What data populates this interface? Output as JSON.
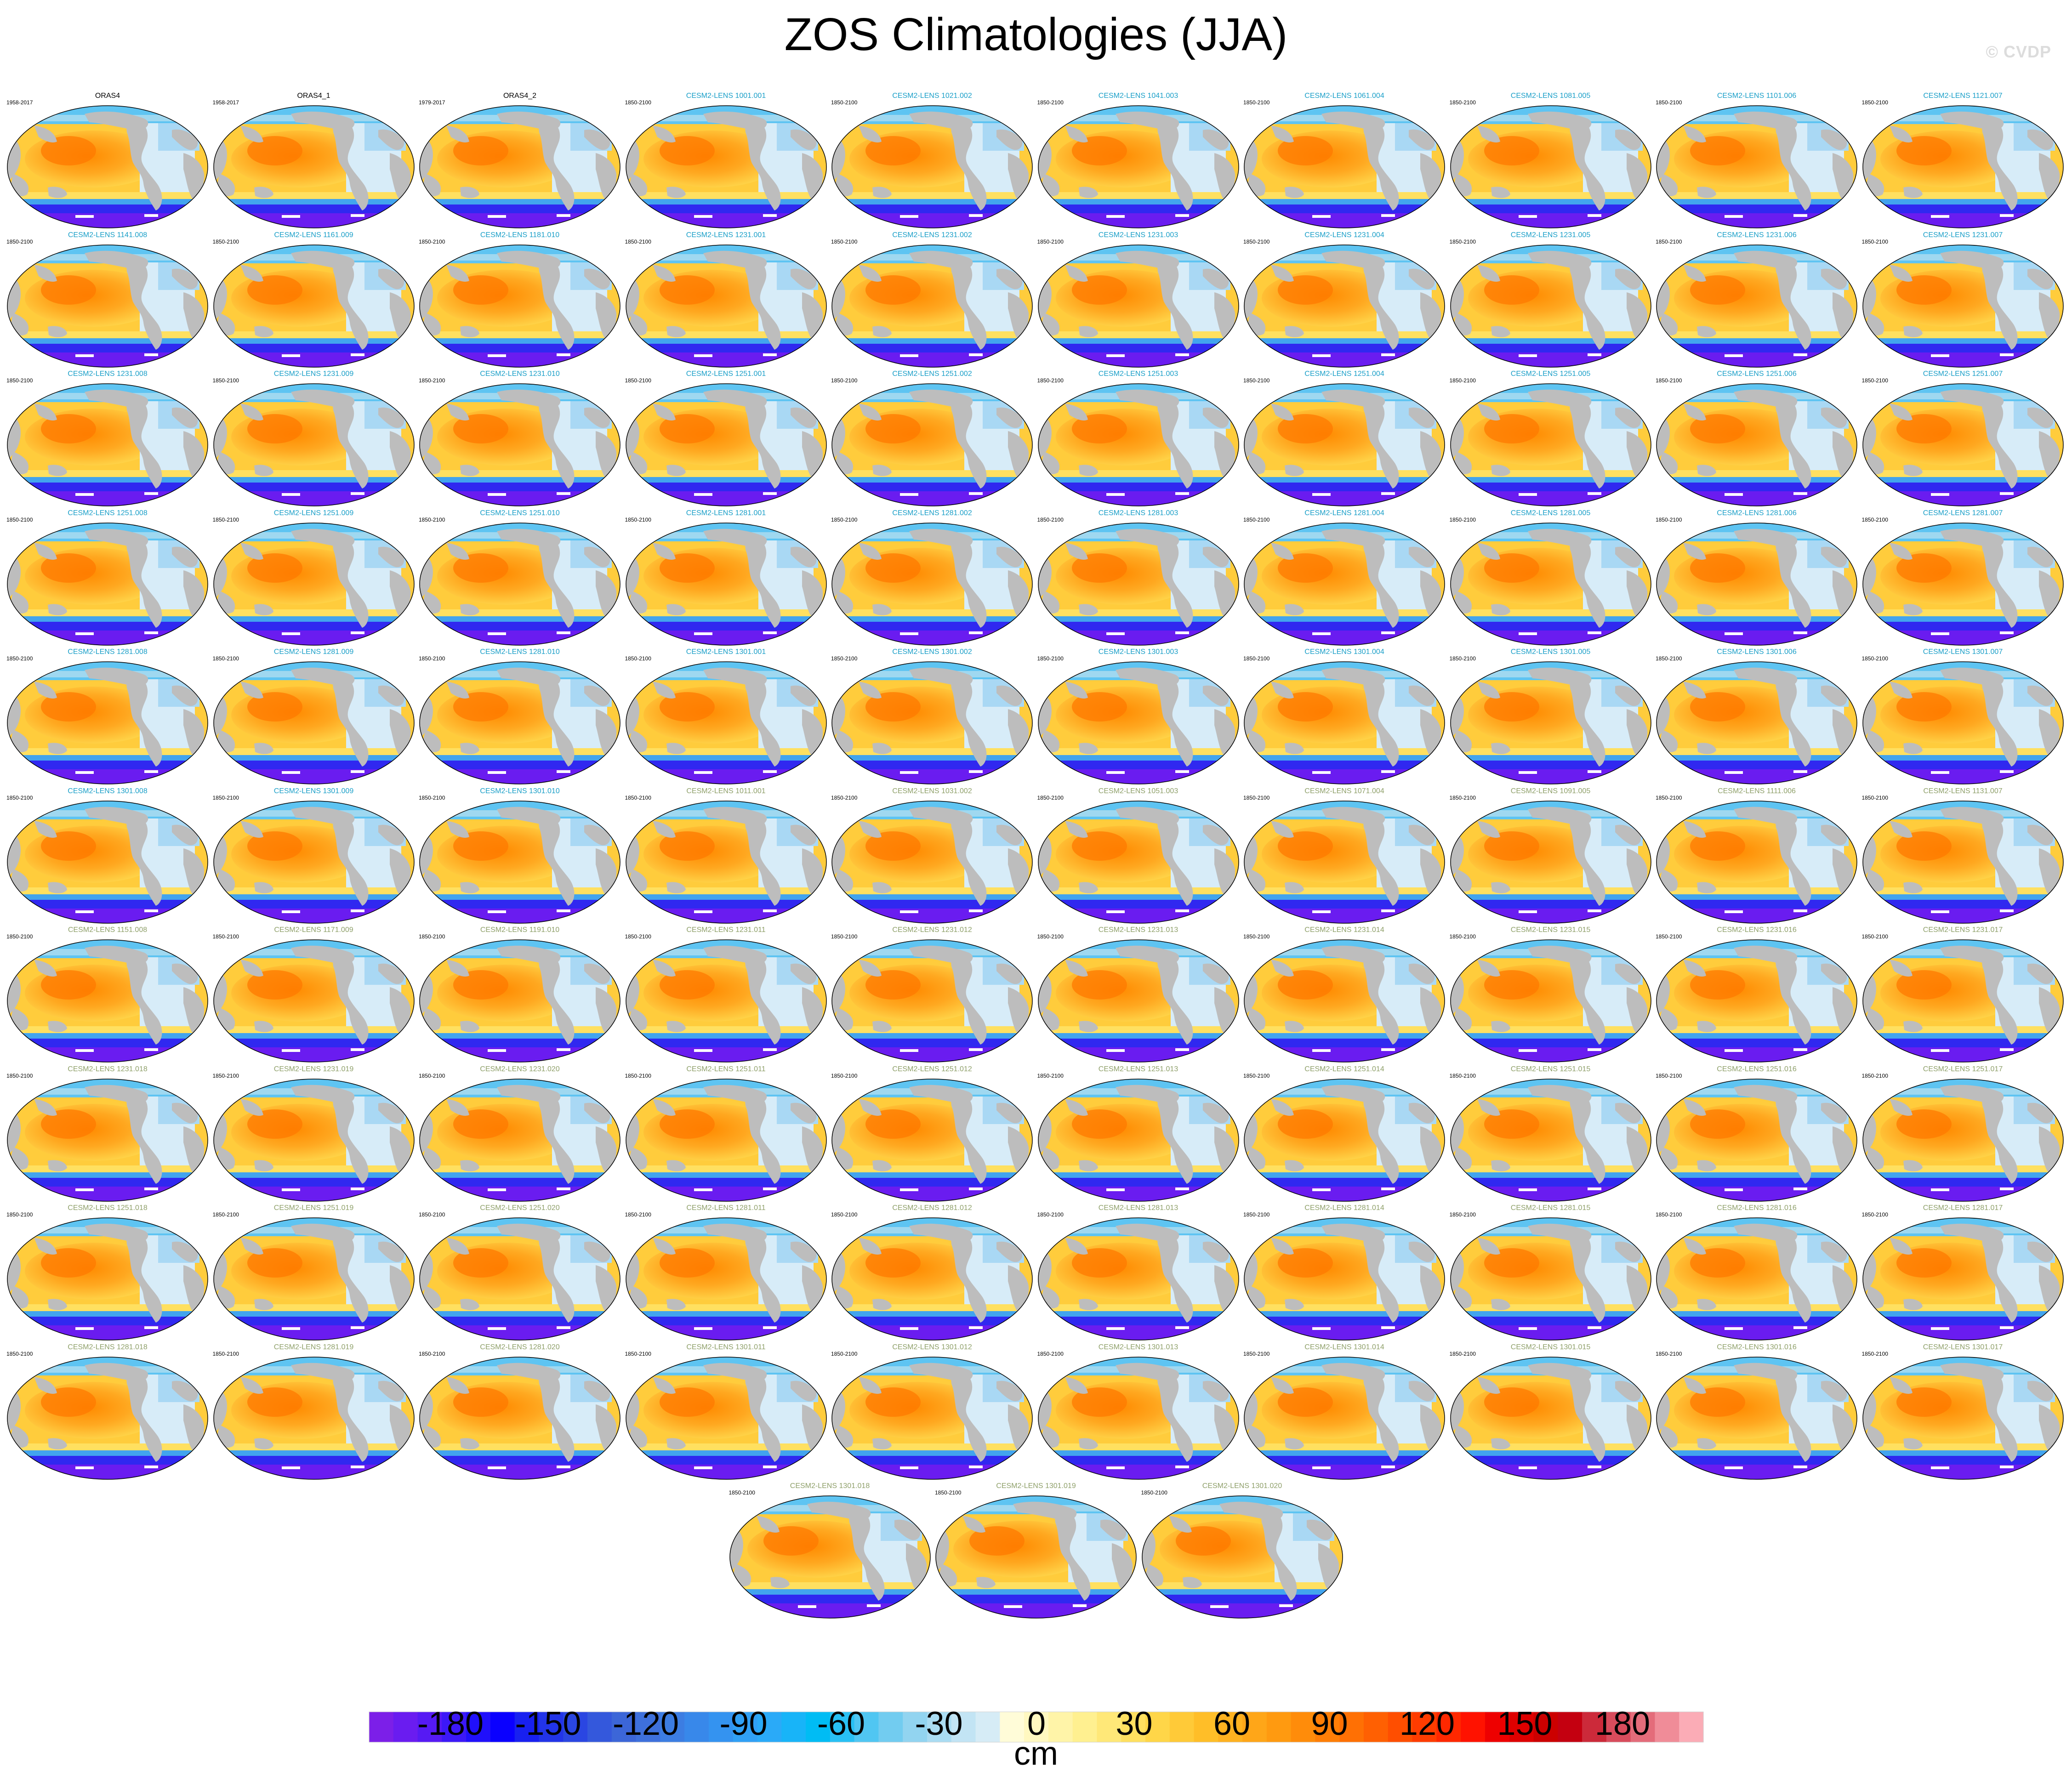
{
  "title": "ZOS Climatologies (JJA)",
  "watermark": "© CVDP",
  "colorbar": {
    "units": "cm",
    "ticks": [
      "-180",
      "-150",
      "-120",
      "-90",
      "-60",
      "-30",
      "0",
      "30",
      "60",
      "90",
      "120",
      "150",
      "180"
    ],
    "colors": [
      "#7c1fe8",
      "#6a1cf0",
      "#561af4",
      "#3c18f8",
      "#2010fb",
      "#0a00ff",
      "#1820f0",
      "#2234e8",
      "#2a46e2",
      "#3458dc",
      "#3c66d8",
      "#3e70dc",
      "#3c7de2",
      "#3888ea",
      "#3493f0",
      "#30a0f5",
      "#2aaaf8",
      "#18b4f8",
      "#00bcf4",
      "#28c0f4",
      "#50c6f2",
      "#72ccf0",
      "#92d4f0",
      "#aadcf2",
      "#c2e4f4",
      "#d6ecf6",
      "#fffcd8",
      "#fff8c0",
      "#fff4a8",
      "#fff090",
      "#ffe878",
      "#ffe060",
      "#ffd648",
      "#ffca38",
      "#ffbe28",
      "#ffb220",
      "#ffa618",
      "#ff9a10",
      "#ff8c0a",
      "#ff7e06",
      "#ff7004",
      "#ff6002",
      "#ff4e00",
      "#ff3c00",
      "#ff2800",
      "#ff1200",
      "#ee0000",
      "#de0000",
      "#cc0000",
      "#c40010",
      "#cc2a3a",
      "#d84c5c",
      "#e46c7a",
      "#f08c98",
      "#fbacb6"
    ]
  },
  "panels": [
    {
      "title": "ORAS4",
      "years": "1958-2017",
      "title_color": "#000000"
    },
    {
      "title": "ORAS4_1",
      "years": "1958-2017",
      "title_color": "#000000"
    },
    {
      "title": "ORAS4_2",
      "years": "1979-2017",
      "title_color": "#000000"
    },
    {
      "title": "CESM2-LENS 1001.001",
      "years": "1850-2100",
      "title_color": "#1a9fc8"
    },
    {
      "title": "CESM2-LENS 1021.002",
      "years": "1850-2100",
      "title_color": "#1a9fc8"
    },
    {
      "title": "CESM2-LENS 1041.003",
      "years": "1850-2100",
      "title_color": "#1a9fc8"
    },
    {
      "title": "CESM2-LENS 1061.004",
      "years": "1850-2100",
      "title_color": "#1a9fc8"
    },
    {
      "title": "CESM2-LENS 1081.005",
      "years": "1850-2100",
      "title_color": "#1a9fc8"
    },
    {
      "title": "CESM2-LENS 1101.006",
      "years": "1850-2100",
      "title_color": "#1a9fc8"
    },
    {
      "title": "CESM2-LENS 1121.007",
      "years": "1850-2100",
      "title_color": "#1a9fc8"
    },
    {
      "title": "CESM2-LENS 1141.008",
      "years": "1850-2100",
      "title_color": "#1a9fc8"
    },
    {
      "title": "CESM2-LENS 1161.009",
      "years": "1850-2100",
      "title_color": "#1a9fc8"
    },
    {
      "title": "CESM2-LENS 1181.010",
      "years": "1850-2100",
      "title_color": "#1a9fc8"
    },
    {
      "title": "CESM2-LENS 1231.001",
      "years": "1850-2100",
      "title_color": "#1a9fc8"
    },
    {
      "title": "CESM2-LENS 1231.002",
      "years": "1850-2100",
      "title_color": "#1a9fc8"
    },
    {
      "title": "CESM2-LENS 1231.003",
      "years": "1850-2100",
      "title_color": "#1a9fc8"
    },
    {
      "title": "CESM2-LENS 1231.004",
      "years": "1850-2100",
      "title_color": "#1a9fc8"
    },
    {
      "title": "CESM2-LENS 1231.005",
      "years": "1850-2100",
      "title_color": "#1a9fc8"
    },
    {
      "title": "CESM2-LENS 1231.006",
      "years": "1850-2100",
      "title_color": "#1a9fc8"
    },
    {
      "title": "CESM2-LENS 1231.007",
      "years": "1850-2100",
      "title_color": "#1a9fc8"
    },
    {
      "title": "CESM2-LENS 1231.008",
      "years": "1850-2100",
      "title_color": "#1a9fc8"
    },
    {
      "title": "CESM2-LENS 1231.009",
      "years": "1850-2100",
      "title_color": "#1a9fc8"
    },
    {
      "title": "CESM2-LENS 1231.010",
      "years": "1850-2100",
      "title_color": "#1a9fc8"
    },
    {
      "title": "CESM2-LENS 1251.001",
      "years": "1850-2100",
      "title_color": "#1a9fc8"
    },
    {
      "title": "CESM2-LENS 1251.002",
      "years": "1850-2100",
      "title_color": "#1a9fc8"
    },
    {
      "title": "CESM2-LENS 1251.003",
      "years": "1850-2100",
      "title_color": "#1a9fc8"
    },
    {
      "title": "CESM2-LENS 1251.004",
      "years": "1850-2100",
      "title_color": "#1a9fc8"
    },
    {
      "title": "CESM2-LENS 1251.005",
      "years": "1850-2100",
      "title_color": "#1a9fc8"
    },
    {
      "title": "CESM2-LENS 1251.006",
      "years": "1850-2100",
      "title_color": "#1a9fc8"
    },
    {
      "title": "CESM2-LENS 1251.007",
      "years": "1850-2100",
      "title_color": "#1a9fc8"
    },
    {
      "title": "CESM2-LENS 1251.008",
      "years": "1850-2100",
      "title_color": "#1a9fc8"
    },
    {
      "title": "CESM2-LENS 1251.009",
      "years": "1850-2100",
      "title_color": "#1a9fc8"
    },
    {
      "title": "CESM2-LENS 1251.010",
      "years": "1850-2100",
      "title_color": "#1a9fc8"
    },
    {
      "title": "CESM2-LENS 1281.001",
      "years": "1850-2100",
      "title_color": "#1a9fc8"
    },
    {
      "title": "CESM2-LENS 1281.002",
      "years": "1850-2100",
      "title_color": "#1a9fc8"
    },
    {
      "title": "CESM2-LENS 1281.003",
      "years": "1850-2100",
      "title_color": "#1a9fc8"
    },
    {
      "title": "CESM2-LENS 1281.004",
      "years": "1850-2100",
      "title_color": "#1a9fc8"
    },
    {
      "title": "CESM2-LENS 1281.005",
      "years": "1850-2100",
      "title_color": "#1a9fc8"
    },
    {
      "title": "CESM2-LENS 1281.006",
      "years": "1850-2100",
      "title_color": "#1a9fc8"
    },
    {
      "title": "CESM2-LENS 1281.007",
      "years": "1850-2100",
      "title_color": "#1a9fc8"
    },
    {
      "title": "CESM2-LENS 1281.008",
      "years": "1850-2100",
      "title_color": "#1a9fc8"
    },
    {
      "title": "CESM2-LENS 1281.009",
      "years": "1850-2100",
      "title_color": "#1a9fc8"
    },
    {
      "title": "CESM2-LENS 1281.010",
      "years": "1850-2100",
      "title_color": "#1a9fc8"
    },
    {
      "title": "CESM2-LENS 1301.001",
      "years": "1850-2100",
      "title_color": "#1a9fc8"
    },
    {
      "title": "CESM2-LENS 1301.002",
      "years": "1850-2100",
      "title_color": "#1a9fc8"
    },
    {
      "title": "CESM2-LENS 1301.003",
      "years": "1850-2100",
      "title_color": "#1a9fc8"
    },
    {
      "title": "CESM2-LENS 1301.004",
      "years": "1850-2100",
      "title_color": "#1a9fc8"
    },
    {
      "title": "CESM2-LENS 1301.005",
      "years": "1850-2100",
      "title_color": "#1a9fc8"
    },
    {
      "title": "CESM2-LENS 1301.006",
      "years": "1850-2100",
      "title_color": "#1a9fc8"
    },
    {
      "title": "CESM2-LENS 1301.007",
      "years": "1850-2100",
      "title_color": "#1a9fc8"
    },
    {
      "title": "CESM2-LENS 1301.008",
      "years": "1850-2100",
      "title_color": "#1a9fc8"
    },
    {
      "title": "CESM2-LENS 1301.009",
      "years": "1850-2100",
      "title_color": "#1a9fc8"
    },
    {
      "title": "CESM2-LENS 1301.010",
      "years": "1850-2100",
      "title_color": "#1a9fc8"
    },
    {
      "title": "CESM2-LENS 1011.001",
      "years": "1850-2100",
      "title_color": "#8fa06a"
    },
    {
      "title": "CESM2-LENS 1031.002",
      "years": "1850-2100",
      "title_color": "#8fa06a"
    },
    {
      "title": "CESM2-LENS 1051.003",
      "years": "1850-2100",
      "title_color": "#8fa06a"
    },
    {
      "title": "CESM2-LENS 1071.004",
      "years": "1850-2100",
      "title_color": "#8fa06a"
    },
    {
      "title": "CESM2-LENS 1091.005",
      "years": "1850-2100",
      "title_color": "#8fa06a"
    },
    {
      "title": "CESM2-LENS 1111.006",
      "years": "1850-2100",
      "title_color": "#8fa06a"
    },
    {
      "title": "CESM2-LENS 1131.007",
      "years": "1850-2100",
      "title_color": "#8fa06a"
    },
    {
      "title": "CESM2-LENS 1151.008",
      "years": "1850-2100",
      "title_color": "#8fa06a"
    },
    {
      "title": "CESM2-LENS 1171.009",
      "years": "1850-2100",
      "title_color": "#8fa06a"
    },
    {
      "title": "CESM2-LENS 1191.010",
      "years": "1850-2100",
      "title_color": "#8fa06a"
    },
    {
      "title": "CESM2-LENS 1231.011",
      "years": "1850-2100",
      "title_color": "#8fa06a"
    },
    {
      "title": "CESM2-LENS 1231.012",
      "years": "1850-2100",
      "title_color": "#8fa06a"
    },
    {
      "title": "CESM2-LENS 1231.013",
      "years": "1850-2100",
      "title_color": "#8fa06a"
    },
    {
      "title": "CESM2-LENS 1231.014",
      "years": "1850-2100",
      "title_color": "#8fa06a"
    },
    {
      "title": "CESM2-LENS 1231.015",
      "years": "1850-2100",
      "title_color": "#8fa06a"
    },
    {
      "title": "CESM2-LENS 1231.016",
      "years": "1850-2100",
      "title_color": "#8fa06a"
    },
    {
      "title": "CESM2-LENS 1231.017",
      "years": "1850-2100",
      "title_color": "#8fa06a"
    },
    {
      "title": "CESM2-LENS 1231.018",
      "years": "1850-2100",
      "title_color": "#8fa06a"
    },
    {
      "title": "CESM2-LENS 1231.019",
      "years": "1850-2100",
      "title_color": "#8fa06a"
    },
    {
      "title": "CESM2-LENS 1231.020",
      "years": "1850-2100",
      "title_color": "#8fa06a"
    },
    {
      "title": "CESM2-LENS 1251.011",
      "years": "1850-2100",
      "title_color": "#8fa06a"
    },
    {
      "title": "CESM2-LENS 1251.012",
      "years": "1850-2100",
      "title_color": "#8fa06a"
    },
    {
      "title": "CESM2-LENS 1251.013",
      "years": "1850-2100",
      "title_color": "#8fa06a"
    },
    {
      "title": "CESM2-LENS 1251.014",
      "years": "1850-2100",
      "title_color": "#8fa06a"
    },
    {
      "title": "CESM2-LENS 1251.015",
      "years": "1850-2100",
      "title_color": "#8fa06a"
    },
    {
      "title": "CESM2-LENS 1251.016",
      "years": "1850-2100",
      "title_color": "#8fa06a"
    },
    {
      "title": "CESM2-LENS 1251.017",
      "years": "1850-2100",
      "title_color": "#8fa06a"
    },
    {
      "title": "CESM2-LENS 1251.018",
      "years": "1850-2100",
      "title_color": "#8fa06a"
    },
    {
      "title": "CESM2-LENS 1251.019",
      "years": "1850-2100",
      "title_color": "#8fa06a"
    },
    {
      "title": "CESM2-LENS 1251.020",
      "years": "1850-2100",
      "title_color": "#8fa06a"
    },
    {
      "title": "CESM2-LENS 1281.011",
      "years": "1850-2100",
      "title_color": "#8fa06a"
    },
    {
      "title": "CESM2-LENS 1281.012",
      "years": "1850-2100",
      "title_color": "#8fa06a"
    },
    {
      "title": "CESM2-LENS 1281.013",
      "years": "1850-2100",
      "title_color": "#8fa06a"
    },
    {
      "title": "CESM2-LENS 1281.014",
      "years": "1850-2100",
      "title_color": "#8fa06a"
    },
    {
      "title": "CESM2-LENS 1281.015",
      "years": "1850-2100",
      "title_color": "#8fa06a"
    },
    {
      "title": "CESM2-LENS 1281.016",
      "years": "1850-2100",
      "title_color": "#8fa06a"
    },
    {
      "title": "CESM2-LENS 1281.017",
      "years": "1850-2100",
      "title_color": "#8fa06a"
    },
    {
      "title": "CESM2-LENS 1281.018",
      "years": "1850-2100",
      "title_color": "#8fa06a"
    },
    {
      "title": "CESM2-LENS 1281.019",
      "years": "1850-2100",
      "title_color": "#8fa06a"
    },
    {
      "title": "CESM2-LENS 1281.020",
      "years": "1850-2100",
      "title_color": "#8fa06a"
    },
    {
      "title": "CESM2-LENS 1301.011",
      "years": "1850-2100",
      "title_color": "#8fa06a"
    },
    {
      "title": "CESM2-LENS 1301.012",
      "years": "1850-2100",
      "title_color": "#8fa06a"
    },
    {
      "title": "CESM2-LENS 1301.013",
      "years": "1850-2100",
      "title_color": "#8fa06a"
    },
    {
      "title": "CESM2-LENS 1301.014",
      "years": "1850-2100",
      "title_color": "#8fa06a"
    },
    {
      "title": "CESM2-LENS 1301.015",
      "years": "1850-2100",
      "title_color": "#8fa06a"
    },
    {
      "title": "CESM2-LENS 1301.016",
      "years": "1850-2100",
      "title_color": "#8fa06a"
    },
    {
      "title": "CESM2-LENS 1301.017",
      "years": "1850-2100",
      "title_color": "#8fa06a"
    },
    {
      "title": "CESM2-LENS 1301.018",
      "years": "1850-2100",
      "title_color": "#8fa06a"
    },
    {
      "title": "CESM2-LENS 1301.019",
      "years": "1850-2100",
      "title_color": "#8fa06a"
    },
    {
      "title": "CESM2-LENS 1301.020",
      "years": "1850-2100",
      "title_color": "#8fa06a"
    }
  ]
}
